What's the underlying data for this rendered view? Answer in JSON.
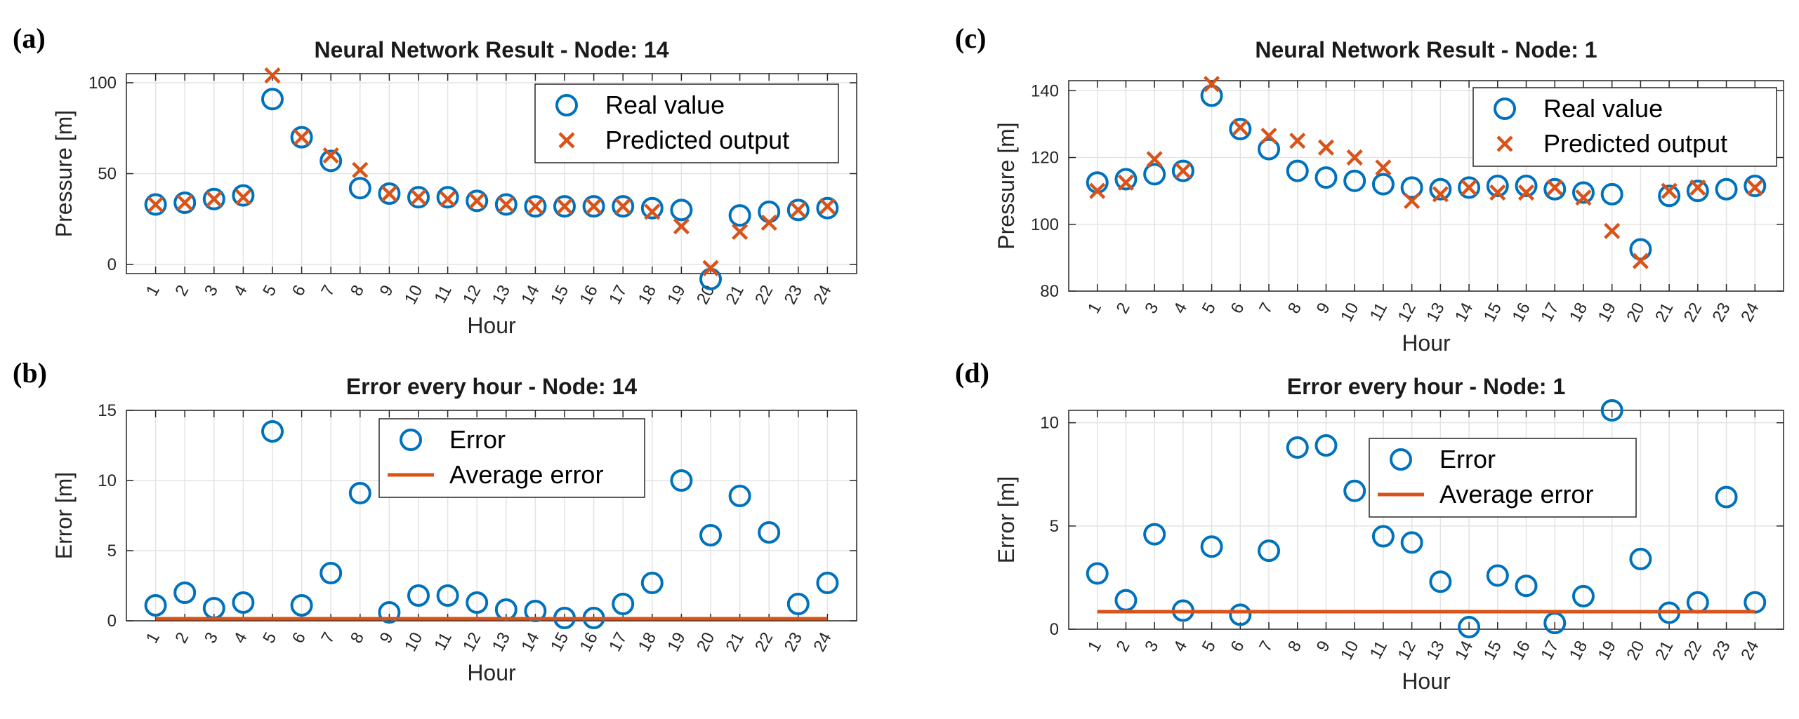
{
  "colors": {
    "real": "#0072bd",
    "predicted": "#d95319",
    "grid": "#e3e3e3",
    "axis": "#262626"
  },
  "chart_data": [
    {
      "id": "a",
      "panel_label": "(a)",
      "type": "scatter",
      "title": "Neural Network Result - Node: 14",
      "xlabel": "Hour",
      "ylabel": "Pressure [m]",
      "categories": [
        "1",
        "2",
        "3",
        "4",
        "5",
        "6",
        "7",
        "8",
        "9",
        "10",
        "11",
        "12",
        "13",
        "14",
        "15",
        "16",
        "17",
        "18",
        "19",
        "20",
        "21",
        "22",
        "23",
        "24"
      ],
      "ylim": [
        -5,
        105
      ],
      "yticks": [
        0,
        50,
        100
      ],
      "ytick_labels": [
        "0",
        "50",
        "100"
      ],
      "legend": {
        "position": "top-right",
        "entries": [
          "Real value",
          "Predicted output"
        ]
      },
      "series": [
        {
          "name": "Real value",
          "marker": "circle",
          "values": [
            33,
            34,
            36,
            38,
            91,
            70,
            57,
            42,
            39,
            37,
            37,
            35,
            33,
            32,
            32,
            32,
            32,
            31,
            30,
            -8,
            27,
            29,
            30,
            31
          ]
        },
        {
          "name": "Predicted output",
          "marker": "cross",
          "values": [
            33,
            34,
            36,
            37,
            104,
            70,
            60,
            52,
            39,
            37,
            36,
            35,
            33,
            32,
            32,
            32,
            32,
            29,
            21,
            -2,
            18,
            23,
            30,
            32
          ]
        }
      ]
    },
    {
      "id": "b",
      "panel_label": "(b)",
      "type": "scatter",
      "title": "Error every hour - Node: 14",
      "xlabel": "Hour",
      "ylabel": "Error [m]",
      "categories": [
        "1",
        "2",
        "3",
        "4",
        "5",
        "6",
        "7",
        "8",
        "9",
        "10",
        "11",
        "12",
        "13",
        "14",
        "15",
        "16",
        "17",
        "18",
        "19",
        "20",
        "21",
        "22",
        "23",
        "24"
      ],
      "ylim": [
        0,
        15
      ],
      "yticks": [
        0,
        5,
        10,
        15
      ],
      "ytick_labels": [
        "0",
        "5",
        "10",
        "15"
      ],
      "legend": {
        "position": "top-center",
        "entries": [
          "Error",
          "Average error"
        ]
      },
      "series": [
        {
          "name": "Error",
          "marker": "circle",
          "values": [
            1.1,
            2.0,
            0.9,
            1.3,
            13.5,
            1.1,
            3.4,
            9.1,
            0.6,
            1.8,
            1.8,
            1.3,
            0.8,
            0.7,
            0.2,
            0.2,
            1.2,
            2.7,
            10.0,
            6.1,
            8.9,
            6.3,
            1.2,
            2.7
          ]
        },
        {
          "name": "Average error",
          "marker": "line",
          "value": 0.15
        }
      ]
    },
    {
      "id": "c",
      "panel_label": "(c)",
      "type": "scatter",
      "title": "Neural Network Result - Node: 1",
      "xlabel": "Hour",
      "ylabel": "Pressure [m]",
      "categories": [
        "1",
        "2",
        "3",
        "4",
        "5",
        "6",
        "7",
        "8",
        "9",
        "10",
        "11",
        "12",
        "13",
        "14",
        "15",
        "16",
        "17",
        "18",
        "19",
        "20",
        "21",
        "22",
        "23",
        "24"
      ],
      "ylim": [
        80,
        143
      ],
      "yticks": [
        80,
        100,
        120,
        140
      ],
      "ytick_labels": [
        "80",
        "100",
        "120",
        "140"
      ],
      "legend": {
        "position": "top-right",
        "entries": [
          "Real value",
          "Predicted output"
        ]
      },
      "series": [
        {
          "name": "Real value",
          "marker": "circle",
          "values": [
            112.5,
            113.5,
            115,
            116,
            138.5,
            128.5,
            122.5,
            116,
            114,
            113,
            112,
            111,
            110.5,
            111,
            111.5,
            111.5,
            110.5,
            109.5,
            109,
            92.5,
            108.5,
            110,
            110.5,
            111.5
          ]
        },
        {
          "name": "Predicted output",
          "marker": "cross",
          "values": [
            110,
            112.5,
            119.5,
            116,
            142,
            129,
            126.5,
            125,
            123,
            120,
            117,
            107,
            109,
            111,
            109.5,
            109.5,
            111,
            108,
            98,
            89,
            110,
            111,
            null,
            111
          ]
        }
      ]
    },
    {
      "id": "d",
      "panel_label": "(d)",
      "type": "scatter",
      "title": "Error every hour - Node: 1",
      "xlabel": "Hour",
      "ylabel": "Error [m]",
      "categories": [
        "1",
        "2",
        "3",
        "4",
        "5",
        "6",
        "7",
        "8",
        "9",
        "10",
        "11",
        "12",
        "13",
        "14",
        "15",
        "16",
        "17",
        "18",
        "19",
        "20",
        "21",
        "22",
        "23",
        "24"
      ],
      "ylim": [
        0,
        10.6
      ],
      "yticks": [
        0,
        5,
        10
      ],
      "ytick_labels": [
        "0",
        "5",
        "10"
      ],
      "legend": {
        "position": "top-center",
        "entries": [
          "Error",
          "Average error"
        ]
      },
      "series": [
        {
          "name": "Error",
          "marker": "circle",
          "values": [
            2.7,
            1.4,
            4.6,
            0.9,
            4.0,
            0.7,
            3.8,
            8.8,
            8.9,
            6.7,
            4.5,
            4.2,
            2.3,
            0.1,
            2.6,
            2.1,
            0.3,
            1.6,
            10.6,
            3.4,
            0.8,
            1.3,
            6.4,
            1.3
          ]
        },
        {
          "name": "Average error",
          "marker": "line",
          "value": 0.85
        }
      ]
    }
  ]
}
